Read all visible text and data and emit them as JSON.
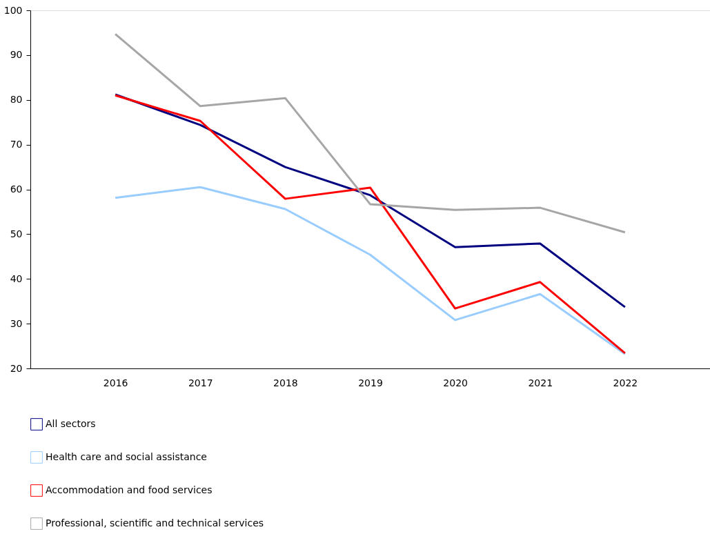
{
  "chart_data": {
    "type": "line",
    "categories": [
      "2016",
      "2017",
      "2018",
      "2019",
      "2020",
      "2021",
      "2022"
    ],
    "series": [
      {
        "name": "All sectors",
        "color": "#000080",
        "values": [
          81.2,
          74.4,
          65,
          58.7,
          47.1,
          47.9,
          33.7
        ]
      },
      {
        "name": "Health care and social assistance",
        "color": "#99ccff",
        "values": [
          58.1,
          60.5,
          55.6,
          45.4,
          30.8,
          36.6,
          23.2
        ]
      },
      {
        "name": "Accommodation and food services",
        "color": "#ff0000",
        "values": [
          81,
          75.3,
          57.9,
          60.4,
          33.4,
          39.3,
          23.4
        ]
      },
      {
        "name": "Professional, scientific and technical services",
        "color": "#a6a6a6",
        "values": [
          94.7,
          78.6,
          80.4,
          56.7,
          55.4,
          55.9,
          50.4
        ]
      }
    ],
    "ylim": [
      20,
      100
    ],
    "yticks": [
      20,
      30,
      40,
      50,
      60,
      70,
      80,
      90,
      100
    ],
    "grid": false,
    "legend": "bottom",
    "marker": "none",
    "line_style": "solid"
  }
}
